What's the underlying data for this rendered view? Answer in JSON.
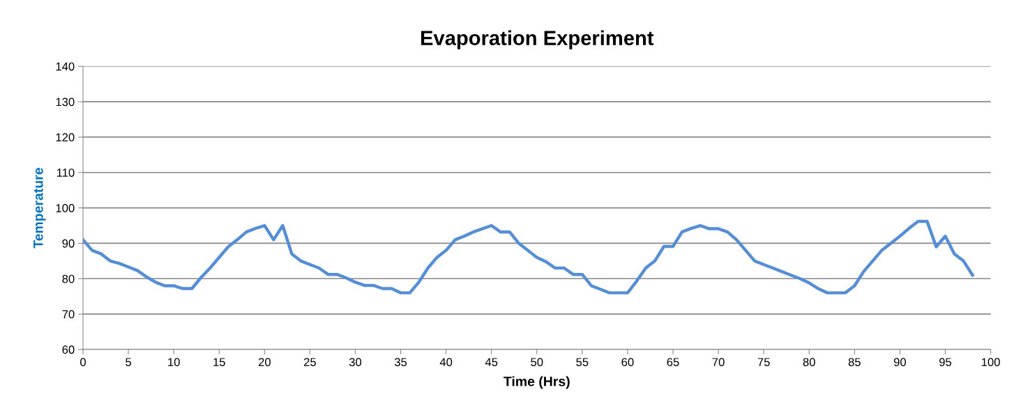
{
  "chart_data": {
    "type": "line",
    "title": "Evaporation Experiment",
    "xlabel": "Time (Hrs)",
    "ylabel": "Temperature",
    "x": [
      0,
      1,
      2,
      3,
      4,
      5,
      6,
      7,
      8,
      9,
      10,
      11,
      12,
      13,
      14,
      15,
      16,
      17,
      18,
      19,
      20,
      21,
      22,
      23,
      24,
      25,
      26,
      27,
      28,
      29,
      30,
      31,
      32,
      33,
      34,
      35,
      36,
      37,
      38,
      39,
      40,
      41,
      42,
      43,
      44,
      45,
      46,
      47,
      48,
      49,
      50,
      51,
      52,
      53,
      54,
      55,
      56,
      57,
      58,
      59,
      60,
      61,
      62,
      63,
      64,
      65,
      66,
      67,
      68,
      69,
      70,
      71,
      72,
      73,
      74,
      75,
      76,
      77,
      78,
      79,
      80,
      81,
      82,
      83,
      84,
      85,
      86,
      87,
      88,
      89,
      90,
      91,
      92,
      93,
      94,
      95,
      96,
      97,
      98
    ],
    "series": [
      {
        "color": "#558ed5",
        "values": [
          91,
          88,
          87,
          85,
          84.3,
          83.3,
          82.3,
          80.5,
          79,
          78,
          78,
          77.2,
          77.2,
          80.3,
          83,
          86,
          89,
          91,
          93.2,
          94.2,
          95,
          91,
          95,
          87,
          85,
          84,
          83,
          81.2,
          81.2,
          80.2,
          79,
          78.1,
          78.1,
          77.2,
          77.2,
          76,
          76,
          79,
          83,
          86,
          88,
          91,
          92,
          93.2,
          94.1,
          95,
          93.2,
          93.2,
          90,
          88,
          86,
          84.8,
          83,
          83,
          81.2,
          81.2,
          78,
          77,
          76,
          76,
          76,
          79.3,
          83,
          85,
          89.1,
          89.1,
          93.2,
          94.2,
          95,
          94.1,
          94.1,
          93.2,
          91,
          88,
          85,
          84,
          83,
          82,
          81,
          80,
          78.8,
          77.2,
          76,
          76,
          76,
          78,
          82,
          85,
          88,
          90,
          92,
          94.2,
          96.2,
          96.2,
          89,
          92,
          87,
          85,
          81
        ]
      }
    ],
    "xlim": [
      0,
      100
    ],
    "xticks": [
      0,
      5,
      10,
      15,
      20,
      25,
      30,
      35,
      40,
      45,
      50,
      55,
      60,
      65,
      70,
      75,
      80,
      85,
      90,
      95,
      100
    ],
    "ylim": [
      60,
      140
    ],
    "yticks": [
      60,
      70,
      80,
      90,
      100,
      110,
      120,
      130,
      140
    ],
    "grid": "y",
    "legend": false,
    "marker": "none",
    "line_style": "solid"
  }
}
